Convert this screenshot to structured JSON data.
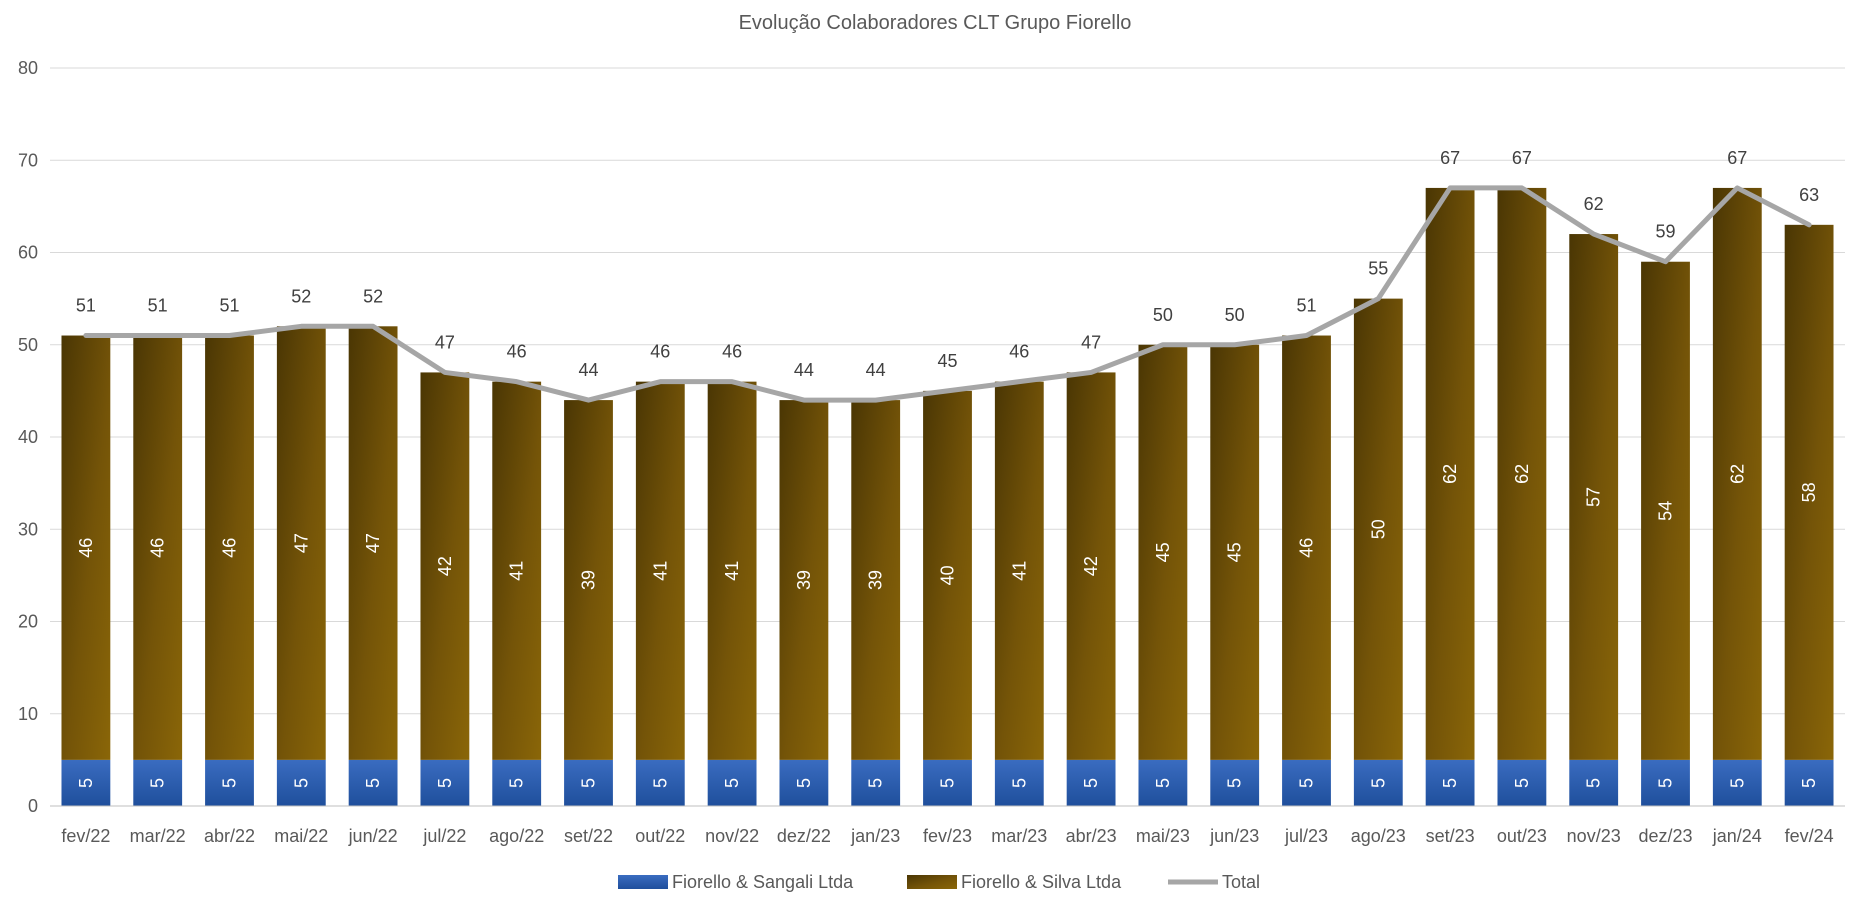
{
  "chart_data": {
    "type": "bar",
    "stacked": true,
    "title": "Evolução Colaboradores CLT Grupo Fiorello",
    "xlabel": "",
    "ylabel": "",
    "ylim": [
      0,
      80
    ],
    "yticks": [
      "0",
      "10",
      "20",
      "30",
      "40",
      "50",
      "60",
      "70",
      "80"
    ],
    "grid": true,
    "legend_position": "bottom",
    "categories": [
      "fev/22",
      "mar/22",
      "abr/22",
      "mai/22",
      "jun/22",
      "jul/22",
      "ago/22",
      "set/22",
      "out/22",
      "nov/22",
      "dez/22",
      "jan/23",
      "fev/23",
      "mar/23",
      "abr/23",
      "mai/23",
      "jun/23",
      "jul/23",
      "ago/23",
      "set/23",
      "out/23",
      "nov/23",
      "dez/23",
      "jan/24",
      "fev/24"
    ],
    "series": [
      {
        "name": "Fiorello & Sangali Ltda",
        "kind": "bar",
        "color": "#2e5fb0",
        "values": [
          5,
          5,
          5,
          5,
          5,
          5,
          5,
          5,
          5,
          5,
          5,
          5,
          5,
          5,
          5,
          5,
          5,
          5,
          5,
          5,
          5,
          5,
          5,
          5,
          5
        ]
      },
      {
        "name": "Fiorello & Silva Ltda",
        "kind": "bar",
        "color": "#7a5a08",
        "values": [
          46,
          46,
          46,
          47,
          47,
          42,
          41,
          39,
          41,
          41,
          39,
          39,
          40,
          41,
          42,
          45,
          45,
          46,
          50,
          62,
          62,
          57,
          54,
          62,
          58
        ]
      },
      {
        "name": "Total",
        "kind": "line",
        "color": "#a6a6a6",
        "values": [
          51,
          51,
          51,
          52,
          52,
          47,
          46,
          44,
          46,
          46,
          44,
          44,
          45,
          46,
          47,
          50,
          50,
          51,
          55,
          67,
          67,
          62,
          59,
          67,
          63
        ]
      }
    ]
  }
}
